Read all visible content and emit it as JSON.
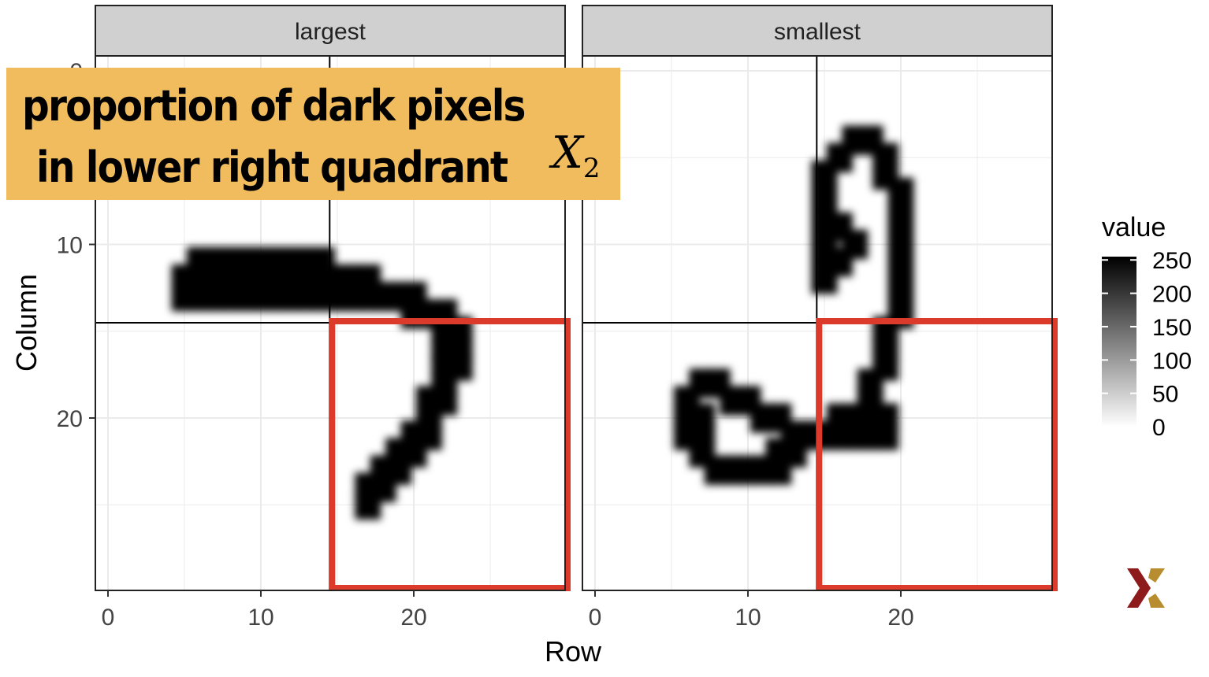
{
  "overlay": {
    "line1": "proportion of dark pixels",
    "line2": "in lower right quadrant",
    "symbol": "X",
    "symbol_sub": "2",
    "bg_color": "#f0bc5e"
  },
  "colors": {
    "highlight": "#dc3a2a",
    "strip": "#d0d0d0",
    "logo_red": "#8e1b1b",
    "logo_gold": "#b88d2f"
  },
  "chart_data": {
    "type": "heatmap",
    "xlabel": "Row",
    "ylabel": "Column",
    "xlim": [
      -0.5,
      29.5
    ],
    "ylim": [
      30.5,
      -0.5
    ],
    "x_ticks": [
      0,
      10,
      20
    ],
    "y_ticks": [
      0,
      10,
      20
    ],
    "grid": true,
    "quadrant_split": 14.5,
    "highlight_quadrant": {
      "x": [
        15,
        30
      ],
      "y": [
        15,
        30
      ],
      "label": "lower right quadrant"
    },
    "panels": [
      {
        "title": "largest",
        "dark_pixels": [
          [
            5,
            12
          ],
          [
            5,
            13
          ],
          [
            6,
            11
          ],
          [
            6,
            12
          ],
          [
            6,
            13
          ],
          [
            7,
            11
          ],
          [
            7,
            12
          ],
          [
            7,
            13
          ],
          [
            8,
            11
          ],
          [
            8,
            12
          ],
          [
            8,
            13
          ],
          [
            9,
            11
          ],
          [
            9,
            12
          ],
          [
            9,
            13
          ],
          [
            10,
            11
          ],
          [
            10,
            12
          ],
          [
            10,
            13
          ],
          [
            11,
            11
          ],
          [
            11,
            12
          ],
          [
            11,
            13
          ],
          [
            12,
            11
          ],
          [
            12,
            12
          ],
          [
            12,
            13
          ],
          [
            13,
            11
          ],
          [
            13,
            12
          ],
          [
            13,
            13
          ],
          [
            14,
            11
          ],
          [
            14,
            12
          ],
          [
            14,
            13
          ],
          [
            15,
            12
          ],
          [
            15,
            13
          ],
          [
            16,
            12
          ],
          [
            16,
            13
          ],
          [
            17,
            12
          ],
          [
            17,
            13
          ],
          [
            18,
            13
          ],
          [
            19,
            13
          ],
          [
            20,
            13
          ],
          [
            20,
            14
          ],
          [
            21,
            14
          ],
          [
            22,
            14
          ],
          [
            22,
            15
          ],
          [
            22,
            16
          ],
          [
            23,
            15
          ],
          [
            23,
            16
          ],
          [
            23,
            17
          ],
          [
            22,
            17
          ],
          [
            22,
            18
          ],
          [
            22,
            19
          ],
          [
            21,
            19
          ],
          [
            21,
            20
          ],
          [
            21,
            21
          ],
          [
            20,
            21
          ],
          [
            20,
            22
          ],
          [
            19,
            22
          ],
          [
            19,
            23
          ],
          [
            18,
            23
          ],
          [
            18,
            24
          ],
          [
            17,
            24
          ],
          [
            17,
            25
          ]
        ]
      },
      {
        "title": "smallest",
        "dark_pixels": [
          [
            17,
            4
          ],
          [
            18,
            4
          ],
          [
            16,
            5
          ],
          [
            19,
            5
          ],
          [
            15,
            6
          ],
          [
            19,
            6
          ],
          [
            15,
            7
          ],
          [
            20,
            7
          ],
          [
            15,
            8
          ],
          [
            20,
            8
          ],
          [
            15,
            9
          ],
          [
            16,
            9
          ],
          [
            20,
            9
          ],
          [
            15,
            10
          ],
          [
            17,
            10
          ],
          [
            20,
            10
          ],
          [
            15,
            11
          ],
          [
            16,
            11
          ],
          [
            20,
            11
          ],
          [
            15,
            12
          ],
          [
            20,
            12
          ],
          [
            20,
            13
          ],
          [
            20,
            14
          ],
          [
            19,
            15
          ],
          [
            19,
            16
          ],
          [
            19,
            17
          ],
          [
            18,
            18
          ],
          [
            18,
            19
          ],
          [
            17,
            20
          ],
          [
            18,
            20
          ],
          [
            19,
            20
          ],
          [
            16,
            20
          ],
          [
            15,
            21
          ],
          [
            16,
            21
          ],
          [
            17,
            21
          ],
          [
            18,
            21
          ],
          [
            19,
            21
          ],
          [
            14,
            21
          ],
          [
            13,
            21
          ],
          [
            12,
            20
          ],
          [
            11,
            20
          ],
          [
            10,
            19
          ],
          [
            9,
            19
          ],
          [
            8,
            18
          ],
          [
            7,
            18
          ],
          [
            6,
            19
          ],
          [
            6,
            20
          ],
          [
            6,
            21
          ],
          [
            7,
            22
          ],
          [
            8,
            23
          ],
          [
            9,
            23
          ],
          [
            10,
            23
          ],
          [
            11,
            23
          ],
          [
            12,
            23
          ],
          [
            13,
            22
          ],
          [
            12,
            22
          ],
          [
            7,
            20
          ],
          [
            7,
            21
          ]
        ]
      }
    ],
    "colorbar": {
      "title": "value",
      "ticks": [
        250,
        200,
        150,
        100,
        50,
        0
      ],
      "range": [
        0,
        255
      ]
    }
  }
}
